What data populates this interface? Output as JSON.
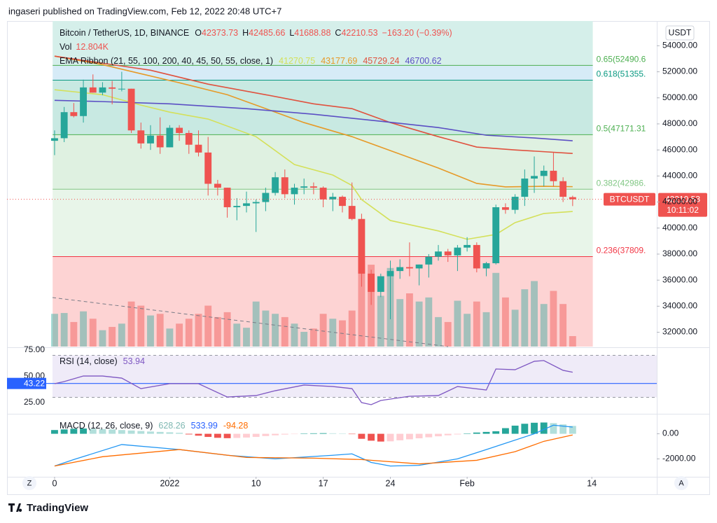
{
  "header": {
    "publisher": "ingaseri published on TradingView.com, Feb 12, 2022 20:48 UTC+7",
    "brand": "TradingView",
    "toolbar_left": "Z",
    "toolbar_right": "A"
  },
  "chart_data": [
    {
      "type": "candlestick",
      "title": "Bitcoin / TetherUS, 1D, BINANCE",
      "ohlc_labels": [
        "O",
        "H",
        "L",
        "C"
      ],
      "change": "−163.20 (−0.39%)",
      "currency": "USDT",
      "price_label": "BTCUSDT",
      "countdown": "10:11:02",
      "up_color": "#26a69a",
      "down_color": "#ef5350",
      "x": [
        0,
        1,
        2,
        3,
        4,
        5,
        6,
        7,
        8,
        9,
        10,
        11,
        12,
        13,
        14,
        15,
        16,
        17,
        18,
        19,
        20,
        21,
        22,
        23,
        24,
        25,
        26,
        27,
        28,
        29,
        30,
        31,
        32,
        33,
        34,
        35,
        36,
        37,
        38,
        39,
        40,
        41,
        42,
        43,
        44,
        45,
        46,
        47,
        48,
        49,
        50,
        51,
        52,
        53,
        54
      ],
      "open": [
        46700,
        46900,
        48900,
        48600,
        50800,
        50400,
        50800,
        50700,
        50700,
        47500,
        46500,
        47100,
        46200,
        47700,
        47300,
        46400,
        45800,
        43400,
        43100,
        41600,
        41700,
        41900,
        42000,
        42700,
        43900,
        42600,
        43100,
        43200,
        43100,
        42200,
        42400,
        41700,
        40700,
        36500,
        35100,
        36300,
        36700,
        37000,
        36900,
        37200,
        37800,
        38200,
        37900,
        38500,
        38700,
        36900,
        37300,
        41600,
        41400,
        42400,
        43800,
        44000,
        44400,
        43600,
        42373.73
      ],
      "high": [
        47500,
        49300,
        49600,
        51400,
        51800,
        51200,
        51300,
        52000,
        50700,
        48100,
        47900,
        48500,
        47900,
        47900,
        47500,
        47500,
        47000,
        43700,
        43100,
        42300,
        42800,
        42200,
        43100,
        44300,
        44500,
        43400,
        43800,
        43500,
        43200,
        42700,
        42500,
        43500,
        41100,
        36800,
        36500,
        37500,
        37600,
        38900,
        37200,
        38000,
        38700,
        38400,
        38700,
        39300,
        38900,
        37400,
        41800,
        41900,
        42600,
        44500,
        45500,
        44800,
        45800,
        43900,
        42485.66
      ],
      "low": [
        45600,
        46600,
        48500,
        48100,
        50400,
        50200,
        49500,
        50500,
        47300,
        46100,
        46000,
        45700,
        46200,
        46700,
        45700,
        45500,
        42500,
        42500,
        40800,
        40600,
        41200,
        39700,
        41300,
        42500,
        42300,
        41800,
        42600,
        42600,
        41600,
        41300,
        41200,
        40600,
        35500,
        34100,
        34700,
        33000,
        36100,
        36300,
        35600,
        36200,
        37500,
        37400,
        36700,
        38200,
        36600,
        36300,
        37200,
        41100,
        41100,
        41700,
        42700,
        43200,
        43200,
        42000,
        41688.88
      ],
      "close": [
        46900,
        48900,
        48600,
        50800,
        50400,
        50800,
        50700,
        50700,
        47500,
        46500,
        47100,
        46200,
        47700,
        47300,
        46400,
        45800,
        43400,
        43100,
        41600,
        41700,
        41900,
        42000,
        42700,
        43900,
        42600,
        43100,
        43200,
        43100,
        42200,
        42400,
        41700,
        40700,
        36500,
        35100,
        36300,
        36700,
        37000,
        36900,
        37200,
        37800,
        38200,
        37900,
        38500,
        38700,
        36900,
        37300,
        41600,
        41400,
        42400,
        43800,
        44000,
        44400,
        43600,
        42400,
        42210.53
      ],
      "volume": {
        "name": "Vol",
        "value_label": "12.804K",
        "up_color": "rgba(38,166,154,0.42)",
        "down_color": "rgba(239,83,80,0.45)",
        "vlim": [
          0,
          130
        ],
        "values": [
          40,
          41,
          30,
          43,
          34,
          20,
          24,
          28,
          55,
          50,
          38,
          40,
          22,
          28,
          34,
          40,
          50,
          36,
          42,
          28,
          23,
          55,
          44,
          40,
          36,
          28,
          18,
          22,
          40,
          34,
          32,
          44,
          105,
          100,
          62,
          96,
          58,
          65,
          55,
          60,
          36,
          30,
          56,
          40,
          55,
          42,
          90,
          60,
          45,
          70,
          80,
          52,
          68,
          52,
          12.804
        ]
      },
      "indicator": "EMA Ribbon (21, 55, 100, 200, 40, 45, 50, 55, close, 1)",
      "series": [
        {
          "color": "#d4e05a",
          "x": [
            0,
            5,
            9,
            12,
            16,
            21,
            25,
            29,
            31,
            32,
            35,
            40,
            43,
            46,
            48,
            51,
            54
          ],
          "values": [
            50620,
            50240,
            49440,
            48900,
            48370,
            47020,
            44880,
            44070,
            43270,
            42190,
            40580,
            39780,
            39140,
            39510,
            40420,
            41120,
            41270.75
          ]
        },
        {
          "color": "#e69a28",
          "x": [
            0,
            5,
            9,
            13,
            18,
            22,
            26,
            31,
            35,
            40,
            44,
            47,
            51,
            54
          ],
          "values": [
            53200,
            52550,
            51850,
            51160,
            50240,
            49170,
            48100,
            47020,
            45950,
            44610,
            43430,
            43160,
            43210,
            43177.69
          ]
        },
        {
          "color": "#e0523f",
          "x": [
            0,
            5,
            10,
            16,
            22,
            27,
            31,
            35,
            40,
            44,
            48,
            54
          ],
          "values": [
            53200,
            52660,
            52120,
            51050,
            50240,
            49540,
            49170,
            48100,
            47020,
            46220,
            46000,
            45729.24
          ]
        },
        {
          "color": "#5b4fc4",
          "x": [
            0,
            5,
            12,
            20,
            27,
            34,
            40,
            45,
            50,
            54
          ],
          "values": [
            49810,
            49710,
            49540,
            49170,
            48740,
            48200,
            47720,
            47130,
            46920,
            46700.62
          ]
        }
      ],
      "fib_range": [
        -0.2,
        56.1
      ],
      "fib_levels": [
        {
          "label": "0.65(52490.6",
          "value": 52490.6,
          "color": "#4caf50",
          "fill": "#d5efea"
        },
        {
          "label": "0.618(51355.",
          "value": 51355,
          "color": "#089981",
          "fill": "#d6ebf7"
        },
        {
          "label": "0.5(47171.31",
          "value": 47171.31,
          "color": "#4caf50",
          "fill": "#c8e9e2"
        },
        {
          "label": "0.382(42986.",
          "value": 42986,
          "color": "#81c784",
          "fill": "#dff1e1"
        },
        {
          "label": "0.236(37809.",
          "value": 37809,
          "color": "#f23645",
          "fill": "#e8f5e9"
        }
      ],
      "fill_below": "#fdd3d3",
      "xlim": [
        -4.96,
        62.77
      ],
      "ylim": [
        30900,
        55900
      ],
      "yticks": [
        {
          "value": 32000,
          "label": "32000.00"
        },
        {
          "value": 34000,
          "label": "34000.00"
        },
        {
          "value": 36000,
          "label": "36000.00"
        },
        {
          "value": 38000,
          "label": "38000.00"
        },
        {
          "value": 40000,
          "label": "40000.00"
        },
        {
          "value": 42000,
          "label": "42000.00"
        },
        {
          "value": 44000,
          "label": "44000.00"
        },
        {
          "value": 46000,
          "label": "46000.00"
        },
        {
          "value": 48000,
          "label": "48000.00"
        },
        {
          "value": 50000,
          "label": "50000.00"
        },
        {
          "value": 52000,
          "label": "52000.00"
        },
        {
          "value": 54000,
          "label": "54000.00"
        }
      ],
      "xticks": [
        {
          "value": 0,
          "label": "0"
        },
        {
          "value": 12,
          "label": "2022"
        },
        {
          "value": 21,
          "label": "10"
        },
        {
          "value": 28,
          "label": "17"
        },
        {
          "value": 35,
          "label": "24"
        },
        {
          "value": 43,
          "label": "Feb"
        },
        {
          "value": 56,
          "label": "14"
        }
      ]
    },
    {
      "type": "line",
      "title": "RSI (14, close)",
      "series": [
        {
          "color": "#7e57c2",
          "x": [
            0,
            1,
            3,
            5,
            7,
            9,
            12,
            15,
            18,
            21,
            23,
            26,
            29,
            31,
            32,
            33,
            34,
            37,
            40,
            42,
            45,
            46,
            48,
            50,
            51,
            53,
            54
          ],
          "values": [
            43,
            45,
            50.3,
            50.3,
            48.3,
            38.3,
            43,
            43,
            30.3,
            31.7,
            36.3,
            41.7,
            40.3,
            38.3,
            25,
            23,
            27,
            31,
            31.7,
            40.3,
            37,
            57,
            56.3,
            64.3,
            65,
            55.7,
            53.94
          ]
        }
      ],
      "band": [
        30,
        70
      ],
      "band_color": "rgba(126,87,194,0.12)",
      "ma": {
        "value": 43.22,
        "color": "#2962ff"
      },
      "xlim": [
        -4.96,
        62.77
      ],
      "ylim": [
        15,
        77
      ],
      "yticks": [
        {
          "value": 25,
          "label": "25.00"
        },
        {
          "value": 50,
          "label": "50.00"
        },
        {
          "value": 75,
          "label": "75.00"
        }
      ]
    },
    {
      "type": "macd",
      "title": "MACD (12, 26, close, 9)",
      "histogram": {
        "colors": [
          "#26a69a",
          "#b2dfdb",
          "#ffcdd2",
          "#ef5350"
        ],
        "x": [
          0,
          1,
          2,
          3,
          4,
          5,
          6,
          7,
          8,
          9,
          10,
          11,
          12,
          13,
          14,
          15,
          16,
          17,
          18,
          19,
          20,
          21,
          22,
          23,
          24,
          25,
          26,
          27,
          28,
          29,
          30,
          31,
          32,
          33,
          34,
          35,
          36,
          37,
          38,
          39,
          40,
          41,
          42,
          43,
          44,
          45,
          46,
          47,
          48,
          49,
          50,
          51,
          52,
          53,
          54
        ],
        "values": [
          300,
          350,
          400,
          420,
          400,
          380,
          350,
          300,
          260,
          220,
          180,
          150,
          120,
          80,
          -50,
          -150,
          -250,
          -320,
          -350,
          -330,
          -300,
          -250,
          -180,
          -120,
          -60,
          -20,
          20,
          40,
          50,
          40,
          10,
          -30,
          -400,
          -550,
          -620,
          -600,
          -520,
          -440,
          -360,
          -280,
          -200,
          -120,
          -50,
          30,
          100,
          150,
          200,
          450,
          650,
          800,
          880,
          900,
          850,
          750,
          628.26
        ]
      },
      "series": [
        {
          "color": "#2196f3",
          "x": [
            0,
            2,
            7,
            13,
            18,
            23,
            29,
            31,
            33,
            35,
            38,
            42,
            45,
            50,
            52,
            54
          ],
          "values": [
            -2571,
            -2057,
            -857,
            -1257,
            -1714,
            -2000,
            -1714,
            -1600,
            -2286,
            -2571,
            -2514,
            -2000,
            -1257,
            0,
            686,
            533.99
          ]
        },
        {
          "color": "#ff6d00",
          "x": [
            0,
            5,
            13,
            20,
            27,
            32,
            38,
            44,
            48,
            51,
            54
          ],
          "values": [
            -2571,
            -1829,
            -1257,
            -1886,
            -1943,
            -2057,
            -2400,
            -2114,
            -1429,
            -600,
            -94.28
          ]
        }
      ],
      "xlim": [
        -4.96,
        62.77
      ],
      "ylim": [
        -3430,
        1540
      ],
      "yticks": [
        {
          "value": 0,
          "label": "0.00"
        },
        {
          "value": -2000,
          "label": "-2000.00"
        }
      ]
    }
  ]
}
